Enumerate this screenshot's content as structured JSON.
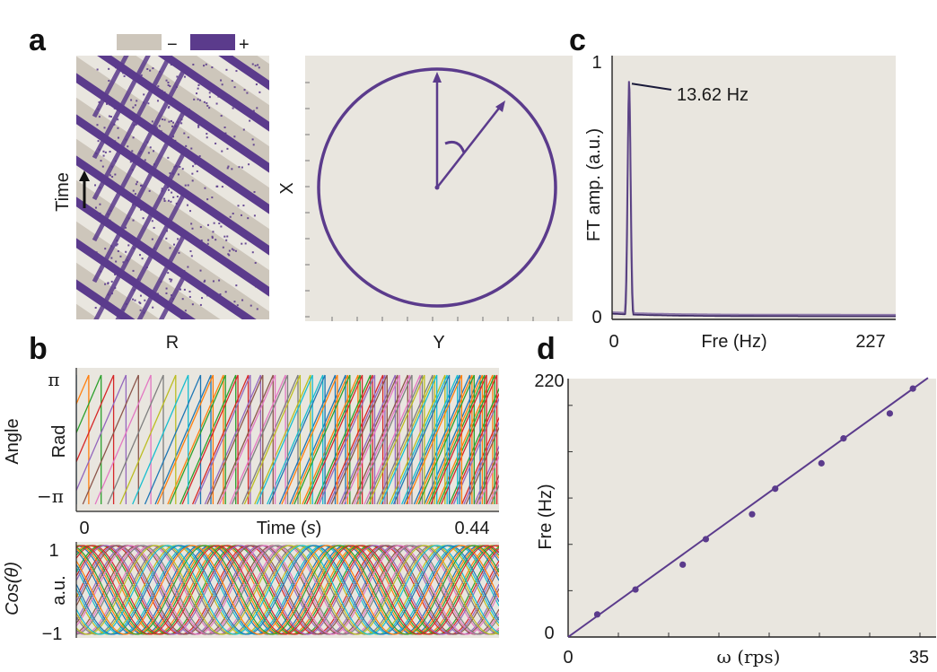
{
  "panels": {
    "a": "a",
    "b": "b",
    "c": "c",
    "d": "d"
  },
  "colors": {
    "bg": "#e9e6df",
    "purple": "#5b3b8c",
    "beige": "#cdc6bb",
    "cycle": [
      "#1f77b4",
      "#ff7f0e",
      "#2ca02c",
      "#d62728",
      "#9467bd",
      "#8c564b",
      "#e377c2",
      "#7f7f7f",
      "#bcbd22",
      "#17becf"
    ]
  },
  "chart_data": [
    {
      "type": "scatter",
      "panel": "a-left",
      "legend": [
        {
          "label": "−",
          "color": "#cdc6bb"
        },
        {
          "label": "+",
          "color": "#5b3b8c"
        }
      ],
      "xlabel": "R",
      "ylabel": "Time",
      "annotation": "diagonal stripes of + (purple) and − (beige) spike density drifting over time"
    },
    {
      "type": "scatter",
      "panel": "a-right",
      "xlabel": "Y",
      "ylabel": "X",
      "annotation": "points on a ring; two arrows from center indicating rotation angle"
    },
    {
      "type": "line",
      "panel": "b-top",
      "ylabel": "Rad",
      "outer_label": "Angle",
      "yticks": [
        "π",
        "−π"
      ],
      "ylim": [
        -3.1416,
        3.1416
      ],
      "x_tick_start": "0",
      "x_tick_end": "0.44",
      "xlabel_prefix": "Time (",
      "xlabel_var": "s",
      "xlabel_suffix": ")",
      "xlim": [
        0,
        0.44
      ],
      "series_count": 34,
      "pattern": "sawtooth phase wrapping from −π to π, staggered across series"
    },
    {
      "type": "line",
      "panel": "b-bottom",
      "ylabel": "a.u.",
      "outer_label_prefix": "Cos(",
      "outer_label_var": "θ",
      "outer_label_suffix": ")",
      "yticks": [
        "1",
        "−1"
      ],
      "ylim": [
        -1,
        1
      ],
      "xlim": [
        0,
        0.44
      ],
      "series_count": 34,
      "pattern": "cosine of each phase series, staggered"
    },
    {
      "type": "line",
      "panel": "c",
      "xlabel": "Fre (Hz)",
      "ylabel": "FT amp. (a.u.)",
      "x_tick_start": "0",
      "x_tick_end": "227",
      "y_tick_top": "1",
      "y_tick_bottom": "0",
      "xlim": [
        0,
        227
      ],
      "ylim": [
        0,
        1
      ],
      "peak": {
        "x": 13.62,
        "y": 0.92
      },
      "annotation": "13.62 Hz"
    },
    {
      "type": "scatter",
      "panel": "d",
      "xlabel": "ω (rps)",
      "ylabel": "Fre (Hz)",
      "x_tick_start": "0",
      "x_tick_end": "35",
      "y_tick_top": "220",
      "y_tick_bottom": "0",
      "xlim": [
        0,
        35
      ],
      "ylim": [
        0,
        220
      ],
      "x": [
        2.9,
        6.7,
        11.4,
        13.7,
        18.3,
        20.6,
        25.2,
        27.4,
        32.0,
        34.3
      ],
      "y": [
        19.5,
        41,
        62.5,
        84.5,
        106,
        128,
        150,
        171.5,
        193,
        214.5
      ],
      "fit": {
        "slope": 6.25,
        "intercept": 0
      }
    }
  ]
}
